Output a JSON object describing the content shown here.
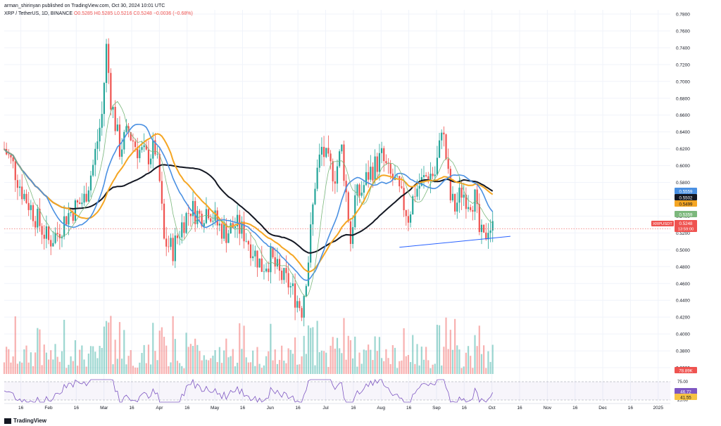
{
  "header": {
    "published_line": "arman_shirinyan published on TradingView.com, Oct 30, 2024 10:01 UTC",
    "symbol_line_prefix": "XRP / TetherUS, 1D, BINANCE",
    "ohlc_line": "O0.5285 H0.5285 L0.5216 C0.5248 −0.0036 (−0.68%)"
  },
  "footer": {
    "brand": "TradingView"
  },
  "colors": {
    "up": "#26a69a",
    "down": "#ef5350",
    "ma_blue": "#4a90e2",
    "ma_orange": "#f5a623",
    "ma_black": "#131722",
    "ma_green": "#7cb87c",
    "trendline": "#2962ff",
    "rsi": "#7e57c2",
    "rsi_ma": "#f6c343",
    "grid": "#f0f3fa"
  },
  "chart_data": {
    "type": "candlestick",
    "title": "XRP / TetherUS, 1D, BINANCE",
    "x_axis_labels": [
      "16",
      "Feb",
      "16",
      "Mar",
      "16",
      "Apr",
      "16",
      "May",
      "16",
      "Jun",
      "16",
      "Jul",
      "16",
      "Aug",
      "16",
      "Sep",
      "16",
      "Oct",
      "16",
      "Nov",
      "16",
      "Dec",
      "16",
      "2025"
    ],
    "y_axis_ticks": [
      "0.7800",
      "0.7600",
      "0.7400",
      "0.7200",
      "0.7000",
      "0.6800",
      "0.6600",
      "0.6400",
      "0.6200",
      "0.6000",
      "0.5800",
      "0.5600",
      "0.5400",
      "0.5200",
      "0.5000",
      "0.4800",
      "0.4600",
      "0.4400",
      "0.4200",
      "0.4000",
      "0.3800",
      "0.3600"
    ],
    "ylim": [
      0.35,
      0.785
    ],
    "price_path": [
      [
        0,
        0.62
      ],
      [
        4,
        0.6
      ],
      [
        8,
        0.57
      ],
      [
        12,
        0.55
      ],
      [
        16,
        0.53
      ],
      [
        20,
        0.51
      ],
      [
        24,
        0.52
      ],
      [
        28,
        0.54
      ],
      [
        32,
        0.55
      ],
      [
        36,
        0.56
      ],
      [
        40,
        0.6
      ],
      [
        44,
        0.66
      ],
      [
        46,
        0.74
      ],
      [
        48,
        0.68
      ],
      [
        52,
        0.62
      ],
      [
        56,
        0.64
      ],
      [
        60,
        0.62
      ],
      [
        64,
        0.61
      ],
      [
        68,
        0.62
      ],
      [
        70,
        0.58
      ],
      [
        72,
        0.51
      ],
      [
        76,
        0.5
      ],
      [
        80,
        0.53
      ],
      [
        84,
        0.55
      ],
      [
        88,
        0.54
      ],
      [
        92,
        0.55
      ],
      [
        96,
        0.53
      ],
      [
        100,
        0.52
      ],
      [
        104,
        0.53
      ],
      [
        108,
        0.52
      ],
      [
        112,
        0.5
      ],
      [
        116,
        0.48
      ],
      [
        120,
        0.49
      ],
      [
        124,
        0.47
      ],
      [
        128,
        0.46
      ],
      [
        132,
        0.44
      ],
      [
        134,
        0.43
      ],
      [
        137,
        0.49
      ],
      [
        140,
        0.58
      ],
      [
        143,
        0.62
      ],
      [
        146,
        0.6
      ],
      [
        149,
        0.59
      ],
      [
        152,
        0.62
      ],
      [
        155,
        0.54
      ],
      [
        156,
        0.51
      ],
      [
        158,
        0.56
      ],
      [
        161,
        0.57
      ],
      [
        164,
        0.59
      ],
      [
        167,
        0.6
      ],
      [
        170,
        0.61
      ],
      [
        173,
        0.59
      ],
      [
        176,
        0.58
      ],
      [
        179,
        0.56
      ],
      [
        182,
        0.54
      ],
      [
        185,
        0.57
      ],
      [
        188,
        0.58
      ],
      [
        191,
        0.59
      ],
      [
        194,
        0.59
      ],
      [
        196,
        0.62
      ],
      [
        197,
        0.65
      ],
      [
        199,
        0.61
      ],
      [
        201,
        0.56
      ],
      [
        203,
        0.55
      ],
      [
        206,
        0.57
      ],
      [
        209,
        0.56
      ],
      [
        212,
        0.56
      ],
      [
        214,
        0.52
      ],
      [
        216,
        0.51
      ],
      [
        218,
        0.53
      ],
      [
        220,
        0.5248
      ]
    ],
    "moving_averages": [
      {
        "name": "",
        "color_key": "ma_blue",
        "last": 0.5559
      },
      {
        "name": "",
        "color_key": "ma_black",
        "last": 0.5502
      },
      {
        "name": "",
        "color_key": "ma_orange",
        "last": 0.5499
      },
      {
        "name": "",
        "color_key": "ma_green",
        "last": 0.5359
      }
    ],
    "trendline": {
      "from": [
        178,
        0.503
      ],
      "to": [
        228,
        0.516
      ]
    },
    "last_price": {
      "label": "XRPUSDT",
      "value": "0.5248",
      "countdown": "13:59:00"
    },
    "price_badges": [
      "0.5559",
      "0.5502",
      "0.5499",
      "0.5359",
      "0.5248"
    ],
    "volume_badge": "78.89K",
    "rsi": {
      "levels": [
        "75.00",
        "25.00"
      ],
      "values": [
        "46.72",
        "41.55"
      ]
    }
  }
}
